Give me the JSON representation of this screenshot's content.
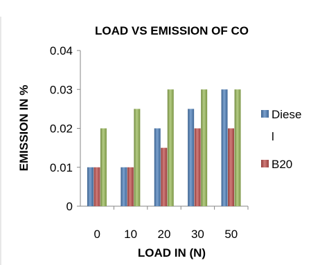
{
  "chart_data": {
    "type": "bar",
    "title": "LOAD VS EMISSION OF CO",
    "xlabel": "LOAD IN (N)",
    "ylabel": "EMISSION IN %",
    "categories": [
      "0",
      "10",
      "20",
      "30",
      "50"
    ],
    "ylim": [
      0,
      0.04
    ],
    "yticks": [
      "0",
      "0.01",
      "0.02",
      "0.03",
      "0.04"
    ],
    "grid": false,
    "legend_position": "right",
    "series": [
      {
        "name": "Diesel",
        "legend_lines": [
          "Diese",
          "l"
        ],
        "color": "#4f81bd",
        "values": [
          0.01,
          0.01,
          0.02,
          0.025,
          0.03
        ]
      },
      {
        "name": "B20",
        "legend_lines": [
          "B20"
        ],
        "color": "#c0504d",
        "values": [
          0.01,
          0.01,
          0.015,
          0.02,
          0.02
        ]
      },
      {
        "name": "",
        "legend_lines": [],
        "color": "#9bbb59",
        "values": [
          0.02,
          0.025,
          0.03,
          0.03,
          0.03
        ]
      }
    ]
  }
}
